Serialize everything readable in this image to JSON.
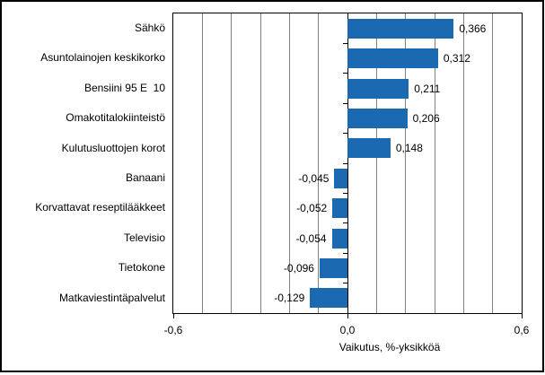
{
  "chart_data": {
    "type": "bar",
    "orientation": "horizontal",
    "title": "",
    "xlabel": "Vaikutus, %-yksikköä",
    "ylabel": "",
    "xlim": [
      -0.6,
      0.6
    ],
    "gridline_step": 0.1,
    "grid_on": true,
    "legend": "none",
    "categories": [
      "Sähkö",
      "Asuntolainojen keskikorko",
      "Bensiini 95 E  10",
      "Omakotitalokiinteistö",
      "Kulutusluottojen korot",
      "Banaani",
      "Korvattavat reseptilääkkeet",
      "Televisio",
      "Tietokone",
      "Matkaviestintäpalvelut"
    ],
    "values": [
      0.366,
      0.312,
      0.211,
      0.206,
      0.148,
      -0.045,
      -0.052,
      -0.054,
      -0.096,
      -0.129
    ],
    "value_labels": [
      "0,366",
      "0,312",
      "0,211",
      "0,206",
      "0,148",
      "-0,045",
      "-0,052",
      "-0,054",
      "-0,096",
      "-0,129"
    ],
    "x_ticks": [
      {
        "value": -0.6,
        "label": "-0,6"
      },
      {
        "value": 0.0,
        "label": "0,0"
      },
      {
        "value": 0.6,
        "label": "0,6"
      }
    ],
    "colors": {
      "bar": "#1b69b1",
      "grid": "#808080",
      "axis": "#000000",
      "text": "#000000",
      "background": "#ffffff"
    }
  }
}
